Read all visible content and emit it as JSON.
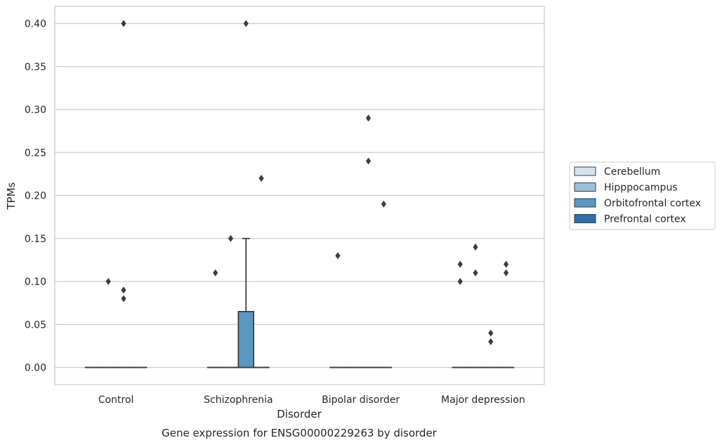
{
  "chart_data": {
    "type": "box",
    "xlabel": "Disorder",
    "ylabel": "TPMs",
    "caption": "Gene expression for ENSG00000229263 by disorder",
    "ylim": [
      -0.02,
      0.42
    ],
    "yticks": [
      "0.00",
      "0.05",
      "0.10",
      "0.15",
      "0.20",
      "0.25",
      "0.30",
      "0.35",
      "0.40"
    ],
    "ytick_values": [
      0,
      0.05,
      0.1,
      0.15,
      0.2,
      0.25,
      0.3,
      0.35,
      0.4
    ],
    "grid": "horizontal",
    "legend_position": "right, outside plot",
    "categories": [
      "Control",
      "Schizophrenia",
      "Bipolar disorder",
      "Major depression"
    ],
    "series": [
      {
        "name": "Cerebellum",
        "color": "#d4e4ef",
        "boxes": [
          {
            "q1": 0,
            "median": 0,
            "q3": 0,
            "whisker_low": 0,
            "whisker_high": 0,
            "outliers": []
          },
          {
            "q1": 0,
            "median": 0,
            "q3": 0,
            "whisker_low": 0,
            "whisker_high": 0,
            "outliers": [
              0.11
            ]
          },
          {
            "q1": 0,
            "median": 0,
            "q3": 0,
            "whisker_low": 0,
            "whisker_high": 0,
            "outliers": [
              0.13
            ]
          },
          {
            "q1": 0,
            "median": 0,
            "q3": 0,
            "whisker_low": 0,
            "whisker_high": 0,
            "outliers": [
              0.12,
              0.1
            ]
          }
        ]
      },
      {
        "name": "Hipppocampus",
        "color": "#9ac0db",
        "boxes": [
          {
            "q1": 0,
            "median": 0,
            "q3": 0,
            "whisker_low": 0,
            "whisker_high": 0,
            "outliers": [
              0.1
            ]
          },
          {
            "q1": 0,
            "median": 0,
            "q3": 0,
            "whisker_low": 0,
            "whisker_high": 0,
            "outliers": [
              0.15
            ]
          },
          {
            "q1": 0,
            "median": 0,
            "q3": 0,
            "whisker_low": 0,
            "whisker_high": 0,
            "outliers": []
          },
          {
            "q1": 0,
            "median": 0,
            "q3": 0,
            "whisker_low": 0,
            "whisker_high": 0,
            "outliers": [
              0.14,
              0.11
            ]
          }
        ]
      },
      {
        "name": "Orbitofrontal cortex",
        "color": "#5a97c1",
        "boxes": [
          {
            "q1": 0,
            "median": 0,
            "q3": 0,
            "whisker_low": 0,
            "whisker_high": 0,
            "outliers": [
              0.4,
              0.09,
              0.08
            ]
          },
          {
            "q1": 0,
            "median": 0,
            "q3": 0.065,
            "whisker_low": 0,
            "whisker_high": 0.15,
            "outliers": [
              0.4
            ]
          },
          {
            "q1": 0,
            "median": 0,
            "q3": 0,
            "whisker_low": 0,
            "whisker_high": 0,
            "outliers": [
              0.29,
              0.24
            ]
          },
          {
            "q1": 0,
            "median": 0,
            "q3": 0,
            "whisker_low": 0,
            "whisker_high": 0,
            "outliers": [
              0.04,
              0.03
            ]
          }
        ]
      },
      {
        "name": "Prefrontal cortex",
        "color": "#2f6ea6",
        "boxes": [
          {
            "q1": 0,
            "median": 0,
            "q3": 0,
            "whisker_low": 0,
            "whisker_high": 0,
            "outliers": []
          },
          {
            "q1": 0,
            "median": 0,
            "q3": 0,
            "whisker_low": 0,
            "whisker_high": 0,
            "outliers": [
              0.22
            ]
          },
          {
            "q1": 0,
            "median": 0,
            "q3": 0,
            "whisker_low": 0,
            "whisker_high": 0,
            "outliers": [
              0.19
            ]
          },
          {
            "q1": 0,
            "median": 0,
            "q3": 0,
            "whisker_low": 0,
            "whisker_high": 0,
            "outliers": [
              0.12,
              0.11
            ]
          }
        ]
      }
    ]
  }
}
